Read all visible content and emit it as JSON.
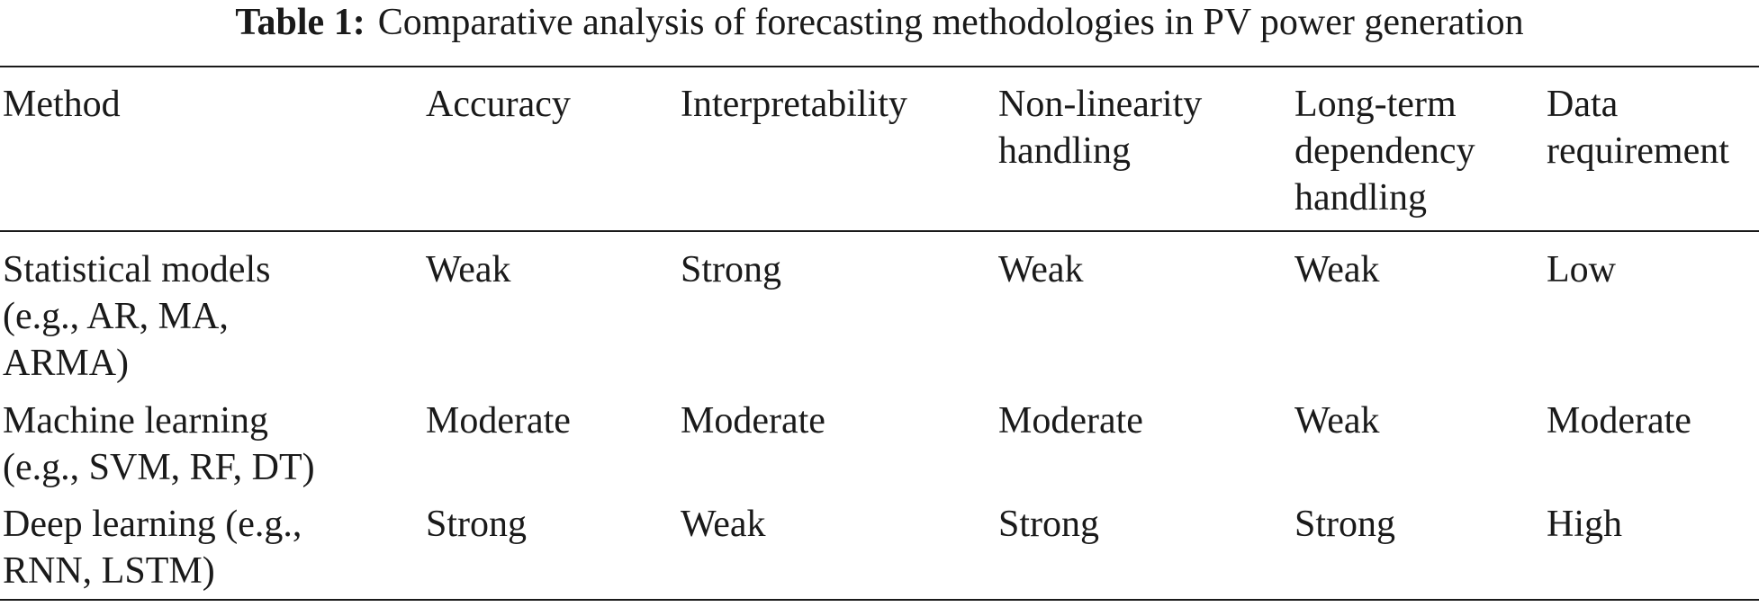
{
  "caption": {
    "label": "Table 1:",
    "text": "Comparative analysis of forecasting methodologies in PV power generation"
  },
  "table": {
    "headers": [
      [
        "Method"
      ],
      [
        "Accuracy"
      ],
      [
        "Interpretability"
      ],
      [
        "Non-linearity",
        "handling"
      ],
      [
        "Long-term",
        "dependency",
        "handling"
      ],
      [
        "Data",
        "requirement"
      ]
    ],
    "rows": [
      {
        "method": [
          "Statistical models",
          "(e.g., AR, MA,",
          "ARMA)"
        ],
        "values": [
          "Weak",
          "Strong",
          "Weak",
          "Weak",
          "Low"
        ]
      },
      {
        "method": [
          "Machine learning",
          "(e.g., SVM, RF, DT)"
        ],
        "values": [
          "Moderate",
          "Moderate",
          "Moderate",
          "Weak",
          "Moderate"
        ]
      },
      {
        "method": [
          "Deep learning (e.g.,",
          "RNN, LSTM)"
        ],
        "values": [
          "Strong",
          "Weak",
          "Strong",
          "Strong",
          "High"
        ]
      }
    ]
  }
}
